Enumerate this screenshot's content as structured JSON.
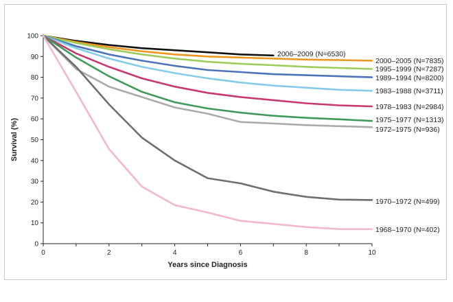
{
  "chart_data": {
    "type": "line",
    "title": "",
    "xlabel": "Years since Diagnosis",
    "ylabel": "Survival (%)",
    "xlim": [
      0,
      10
    ],
    "ylim": [
      0,
      100
    ],
    "xticks": [
      0,
      2,
      4,
      6,
      8,
      10
    ],
    "yticks": [
      0,
      10,
      20,
      30,
      40,
      50,
      60,
      70,
      80,
      90,
      100
    ],
    "grid": false,
    "series": [
      {
        "name": "2006–2009 (N=6530)",
        "color": "#111111",
        "x": [
          0,
          1,
          2,
          3,
          4,
          5,
          6,
          7
        ],
        "y": [
          100,
          97.5,
          95.5,
          94,
          93,
          92,
          91,
          90.5
        ]
      },
      {
        "name": "2000–2005 (N=7835)",
        "color": "#f0961e",
        "x": [
          0,
          1,
          2,
          3,
          4,
          5,
          6,
          7,
          8,
          9,
          10
        ],
        "y": [
          100,
          97,
          94.5,
          92.5,
          91,
          90,
          89.5,
          89,
          88.5,
          88.3,
          88
        ]
      },
      {
        "name": "1995–1999 (N=7287)",
        "color": "#9ccc5a",
        "x": [
          0,
          1,
          2,
          3,
          4,
          5,
          6,
          7,
          8,
          9,
          10
        ],
        "y": [
          100,
          96.5,
          93.5,
          91,
          89,
          87.5,
          86.5,
          85.8,
          85,
          84.5,
          84
        ]
      },
      {
        "name": "1989–1994 (N=8200)",
        "color": "#4a73b8",
        "x": [
          0,
          1,
          2,
          3,
          4,
          5,
          6,
          7,
          8,
          9,
          10
        ],
        "y": [
          100,
          95,
          91,
          88,
          85.5,
          83.5,
          82.5,
          81.5,
          81,
          80.5,
          80
        ]
      },
      {
        "name": "1983–1988 (N=3711)",
        "color": "#82ccea",
        "x": [
          0,
          1,
          2,
          3,
          4,
          5,
          6,
          7,
          8,
          9,
          10
        ],
        "y": [
          100,
          94,
          89,
          85,
          82,
          79.5,
          77.5,
          76,
          75,
          74,
          73.5
        ]
      },
      {
        "name": "1978–1983 (N=2984)",
        "color": "#c9376e",
        "x": [
          0,
          1,
          2,
          3,
          4,
          5,
          6,
          7,
          8,
          9,
          10
        ],
        "y": [
          100,
          91.5,
          85,
          79.5,
          75.5,
          72.5,
          70.5,
          69,
          67.5,
          66.5,
          66
        ]
      },
      {
        "name": "1975–1977 (N=1313)",
        "color": "#3f9a57",
        "x": [
          0,
          1,
          2,
          3,
          4,
          5,
          6,
          7,
          8,
          9,
          10
        ],
        "y": [
          100,
          89.5,
          80.5,
          73,
          68,
          65,
          63,
          61.5,
          60.5,
          59.8,
          59
        ]
      },
      {
        "name": "1972–1975 (N=936)",
        "color": "#aaaaaa",
        "x": [
          0,
          1,
          2,
          3,
          4,
          5,
          6,
          7,
          8,
          9,
          10
        ],
        "y": [
          100,
          84,
          75.5,
          70.5,
          65.5,
          62.5,
          58.5,
          57.8,
          57,
          56.5,
          56
        ]
      },
      {
        "name": "1970–1972 (N=499)",
        "color": "#6e6e6e",
        "x": [
          0,
          1,
          2,
          3,
          4,
          5,
          6,
          7,
          8,
          9,
          10
        ],
        "y": [
          100,
          85,
          67,
          51,
          40,
          31.5,
          29,
          25,
          22.5,
          21.2,
          21
        ]
      },
      {
        "name": "1968–1970 (N=402)",
        "color": "#f2b8c8",
        "x": [
          0,
          1,
          2,
          3,
          4,
          5,
          6,
          7,
          8,
          9,
          10
        ],
        "y": [
          100,
          73,
          45.5,
          27.5,
          18.5,
          15,
          11,
          9.5,
          8,
          7,
          7
        ]
      }
    ]
  }
}
